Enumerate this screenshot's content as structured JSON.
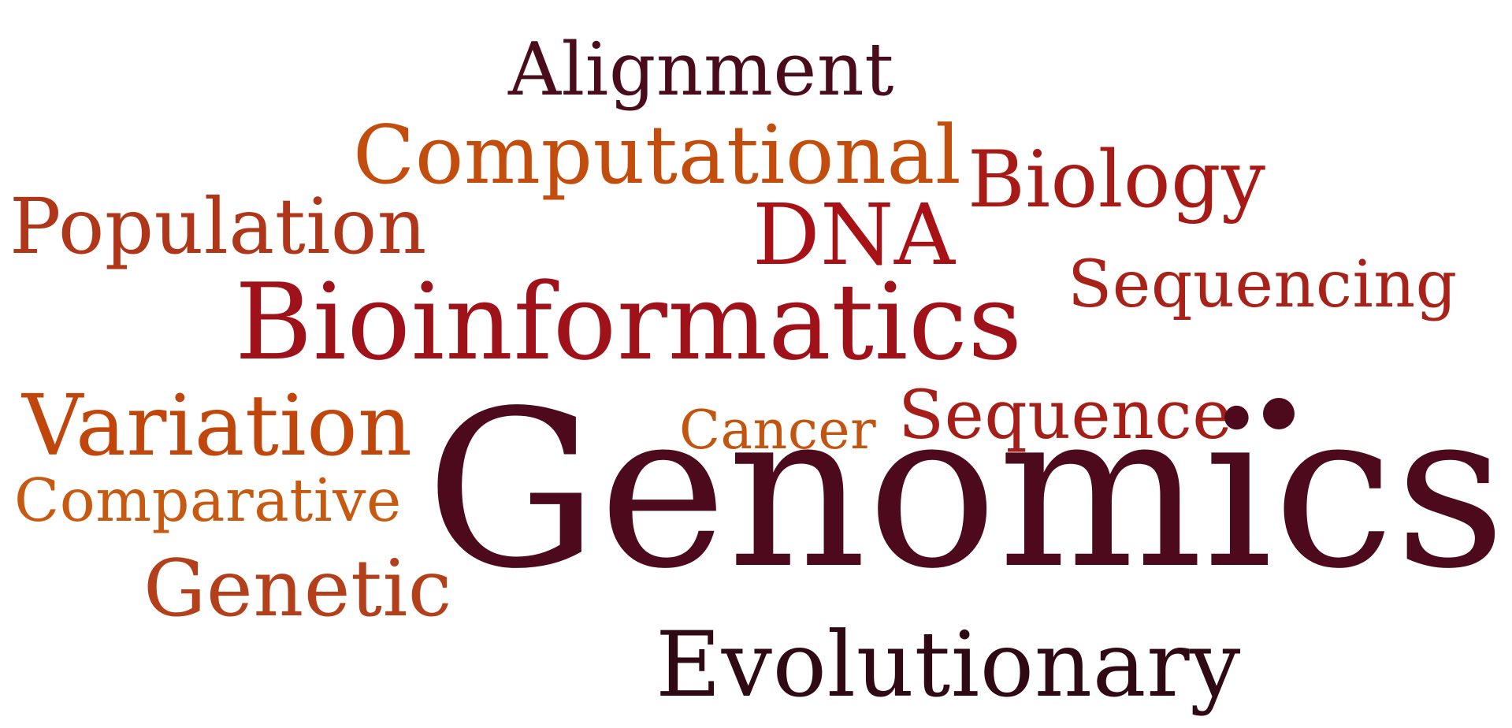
{
  "cloud": {
    "words": [
      {
        "key": "genomics",
        "text": "Genomics",
        "color": "#4d0a1c"
      },
      {
        "key": "bioinformatics",
        "text": "Bioinformatics",
        "color": "#a01219"
      },
      {
        "key": "computational",
        "text": "Computational",
        "color": "#c24d0d"
      },
      {
        "key": "alignment",
        "text": "Alignment",
        "color": "#4a0c1a"
      },
      {
        "key": "biology",
        "text": "Biology",
        "color": "#a81a16"
      },
      {
        "key": "population",
        "text": "Population",
        "color": "#b0361a"
      },
      {
        "key": "dna",
        "text": "DNA",
        "color": "#a81216"
      },
      {
        "key": "sequencing",
        "text": "Sequencing",
        "color": "#a8221a"
      },
      {
        "key": "variation",
        "text": "Variation",
        "color": "#c0460c"
      },
      {
        "key": "cancer",
        "text": "Cancer",
        "color": "#c25512"
      },
      {
        "key": "sequence",
        "text": "Sequence",
        "color": "#a51e18"
      },
      {
        "key": "comparative",
        "text": "Comparative",
        "color": "#c75a10"
      },
      {
        "key": "genetic",
        "text": "Genetic",
        "color": "#b3401a"
      },
      {
        "key": "evolutionary",
        "text": "Evolutionary",
        "color": "#2f0a14"
      }
    ],
    "dot_color": "#4d0a1c"
  }
}
